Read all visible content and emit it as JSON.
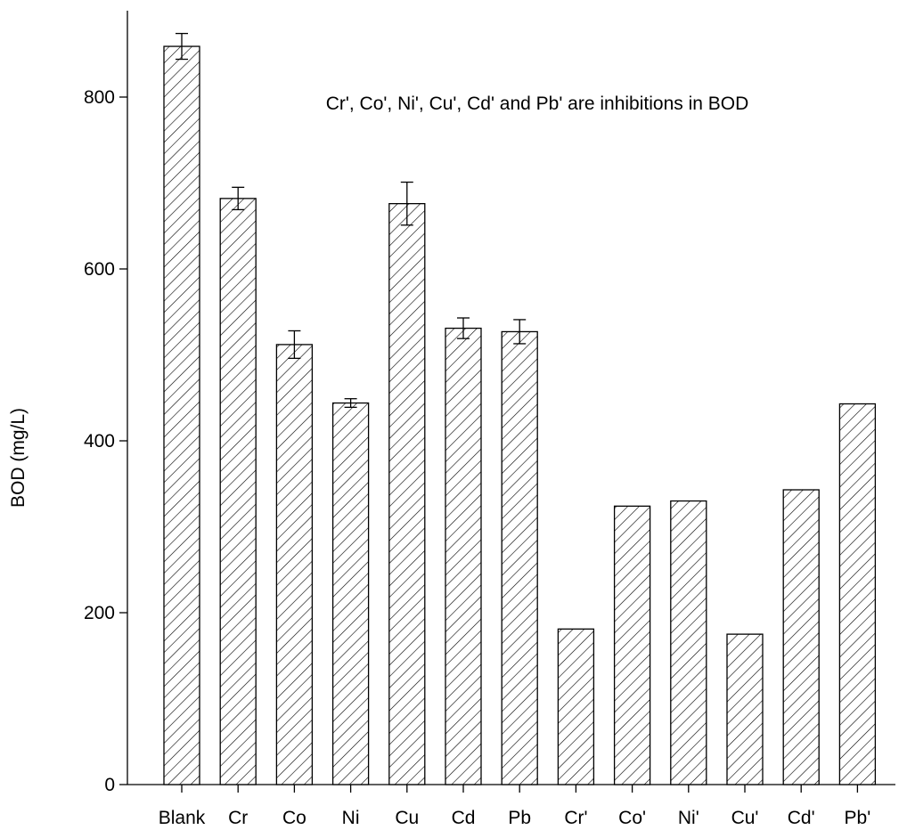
{
  "chart_data": {
    "type": "bar",
    "title": "",
    "xlabel": "",
    "ylabel": "BOD (mg/L)",
    "ylim": [
      0,
      900
    ],
    "yticks": [
      0,
      200,
      400,
      600,
      800
    ],
    "grid": false,
    "annotation": "Cr', Co', Ni', Cu', Cd' and Pb' are inhibitions in BOD",
    "categories": [
      "Blank",
      "Cr",
      "Co",
      "Ni",
      "Cu",
      "Cd",
      "Pb",
      "Cr'",
      "Co'",
      "Ni'",
      "Cu'",
      "Cd'",
      "Pb'"
    ],
    "values": [
      859,
      682,
      512,
      444,
      676,
      531,
      527,
      181,
      324,
      330,
      175,
      343,
      443
    ],
    "errors": [
      15,
      13,
      16,
      5,
      25,
      12,
      14,
      null,
      null,
      null,
      null,
      null,
      null
    ],
    "bar_fill": "#ffffff",
    "hatch_color": "#000000"
  }
}
